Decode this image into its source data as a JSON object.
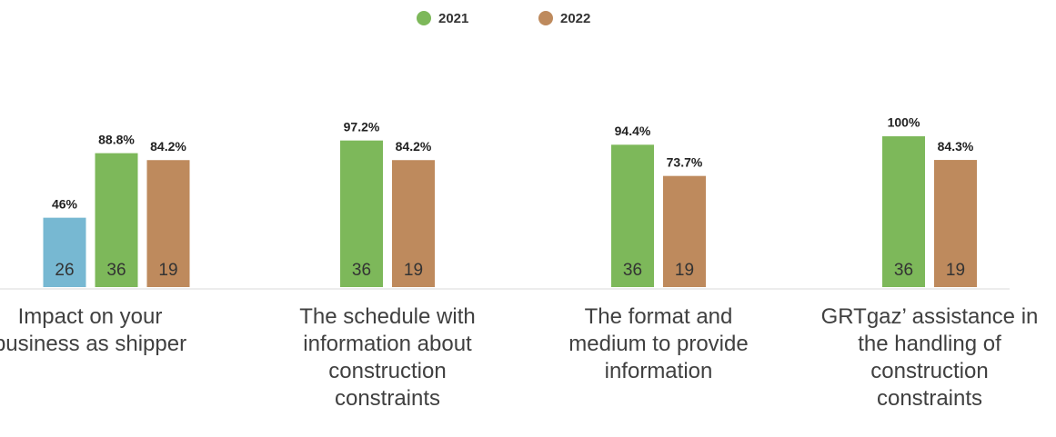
{
  "chart_data": {
    "type": "bar",
    "categories": [
      "Impact on your business as shipper",
      "The schedule with information about construction constraints",
      "The format and medium to provide information",
      "GRTgaz’ assistance in the handling of construction constraints"
    ],
    "series": [
      {
        "color": "#77b8d2",
        "values": [
          46,
          null,
          null,
          null
        ],
        "value_labels": [
          "46%",
          null,
          null,
          null
        ],
        "counts": [
          26,
          null,
          null,
          null
        ]
      },
      {
        "name": "2021",
        "color": "#7db85a",
        "values": [
          88.8,
          97.2,
          94.4,
          100
        ],
        "value_labels": [
          "88.8%",
          "97.2%",
          "94.4%",
          "100%"
        ],
        "counts": [
          36,
          36,
          36,
          36
        ]
      },
      {
        "name": "2022",
        "color": "#be8a5d",
        "values": [
          84.2,
          84.2,
          73.7,
          84.3
        ],
        "value_labels": [
          "84.2%",
          "84.2%",
          "73.7%",
          "84.3%"
        ],
        "counts": [
          19,
          19,
          19,
          19
        ]
      }
    ],
    "ylim": [
      0,
      100
    ],
    "legend": "top"
  }
}
